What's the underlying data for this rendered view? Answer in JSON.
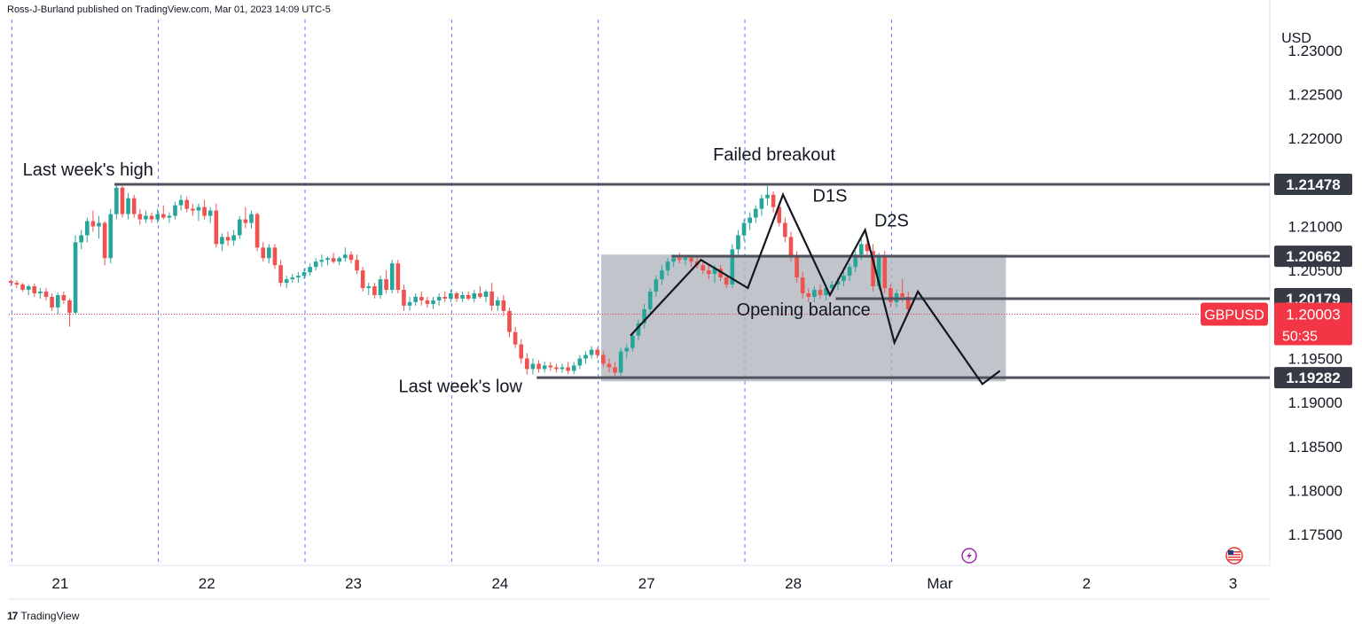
{
  "header": {
    "publisher": "Ross-J-Burland published on TradingView.com, Mar 01, 2023 14:09 UTC-5"
  },
  "footer": {
    "brand": "TradingView"
  },
  "colors": {
    "up": "#26a69a",
    "down": "#ef5350",
    "level": "#50535e",
    "badge": "#363a45",
    "price_badge": "#f23645",
    "grid": "#2962ff",
    "box": "#b2b5be"
  },
  "chart_data": {
    "type": "candlestick",
    "symbol": "GBPUSD",
    "currency": "USD",
    "y_range": [
      1.1715,
      1.2335
    ],
    "y_ticks": [
      {
        "v": 1.23,
        "label": "1.23000"
      },
      {
        "v": 1.225,
        "label": "1.22500"
      },
      {
        "v": 1.22,
        "label": "1.22000"
      },
      {
        "v": 1.21,
        "label": "1.21000"
      },
      {
        "v": 1.205,
        "label": "1.20500"
      },
      {
        "v": 1.195,
        "label": "1.19500"
      },
      {
        "v": 1.19,
        "label": "1.19000"
      },
      {
        "v": 1.185,
        "label": "1.18500"
      },
      {
        "v": 1.18,
        "label": "1.18000"
      },
      {
        "v": 1.175,
        "label": "1.17500"
      }
    ],
    "x_range": [
      0,
      8.6
    ],
    "x_ticks": [
      {
        "x": 0.35,
        "label": "21"
      },
      {
        "x": 1.35,
        "label": "22"
      },
      {
        "x": 2.35,
        "label": "23"
      },
      {
        "x": 3.35,
        "label": "24"
      },
      {
        "x": 4.35,
        "label": "27"
      },
      {
        "x": 5.35,
        "label": "28"
      },
      {
        "x": 6.35,
        "label": "Mar"
      },
      {
        "x": 7.35,
        "label": "2"
      },
      {
        "x": 8.35,
        "label": "3"
      }
    ],
    "session_lines": [
      0.02,
      1.02,
      2.02,
      3.02,
      4.02,
      5.02,
      6.02
    ],
    "candles": [
      [
        0.0,
        1.2038,
        1.204,
        1.2032,
        1.2036
      ],
      [
        0.04,
        1.2036,
        1.2039,
        1.203,
        1.2034
      ],
      [
        0.08,
        1.2034,
        1.2036,
        1.2026,
        1.2028
      ],
      [
        0.12,
        1.2028,
        1.2034,
        1.2022,
        1.2032
      ],
      [
        0.16,
        1.2032,
        1.2035,
        1.202,
        1.2024
      ],
      [
        0.2,
        1.2024,
        1.203,
        1.2018,
        1.2026
      ],
      [
        0.24,
        1.2026,
        1.203,
        1.2016,
        1.202
      ],
      [
        0.28,
        1.202,
        1.2024,
        1.2004,
        1.2008
      ],
      [
        0.32,
        1.2008,
        1.2025,
        1.2,
        1.2022
      ],
      [
        0.36,
        1.2022,
        1.2026,
        1.2012,
        1.2016
      ],
      [
        0.4,
        1.2016,
        1.2018,
        1.1986,
        1.2002
      ],
      [
        0.44,
        1.2002,
        1.209,
        1.2,
        1.2082
      ],
      [
        0.48,
        1.2082,
        1.2096,
        1.2074,
        1.209
      ],
      [
        0.52,
        1.209,
        1.211,
        1.2082,
        1.2106
      ],
      [
        0.56,
        1.2106,
        1.2118,
        1.2094,
        1.21
      ],
      [
        0.6,
        1.21,
        1.2112,
        1.2086,
        1.2104
      ],
      [
        0.64,
        1.2104,
        1.2106,
        1.2056,
        1.2064
      ],
      [
        0.68,
        1.2064,
        1.212,
        1.2058,
        1.2114
      ],
      [
        0.72,
        1.2114,
        1.2148,
        1.2108,
        1.2144
      ],
      [
        0.76,
        1.2144,
        1.2146,
        1.211,
        1.2114
      ],
      [
        0.8,
        1.2114,
        1.2138,
        1.2108,
        1.2132
      ],
      [
        0.84,
        1.2132,
        1.2136,
        1.211,
        1.2114
      ],
      [
        0.88,
        1.2114,
        1.212,
        1.2102,
        1.2108
      ],
      [
        0.92,
        1.2108,
        1.2118,
        1.2104,
        1.2112
      ],
      [
        0.96,
        1.2112,
        1.2116,
        1.2104,
        1.2108
      ],
      [
        1.0,
        1.2108,
        1.212,
        1.2104,
        1.2114
      ],
      [
        1.04,
        1.2114,
        1.2124,
        1.2108,
        1.211
      ],
      [
        1.08,
        1.211,
        1.2116,
        1.2104,
        1.2112
      ],
      [
        1.12,
        1.2112,
        1.2128,
        1.2108,
        1.2124
      ],
      [
        1.16,
        1.2124,
        1.2136,
        1.2118,
        1.213
      ],
      [
        1.2,
        1.213,
        1.2134,
        1.2116,
        1.212
      ],
      [
        1.24,
        1.212,
        1.2126,
        1.2112,
        1.2118
      ],
      [
        1.28,
        1.2118,
        1.2126,
        1.2106,
        1.2122
      ],
      [
        1.32,
        1.2122,
        1.213,
        1.2108,
        1.2112
      ],
      [
        1.36,
        1.2112,
        1.2122,
        1.2104,
        1.2118
      ],
      [
        1.4,
        1.2118,
        1.2126,
        1.2076,
        1.208
      ],
      [
        1.44,
        1.208,
        1.2092,
        1.2072,
        1.2088
      ],
      [
        1.48,
        1.2088,
        1.2094,
        1.2078,
        1.2084
      ],
      [
        1.52,
        1.2084,
        1.2096,
        1.2078,
        1.209
      ],
      [
        1.56,
        1.209,
        1.2112,
        1.2086,
        1.2108
      ],
      [
        1.6,
        1.2108,
        1.2122,
        1.2098,
        1.2104
      ],
      [
        1.64,
        1.2104,
        1.2118,
        1.2098,
        1.2114
      ],
      [
        1.68,
        1.2114,
        1.2116,
        1.2072,
        1.2076
      ],
      [
        1.72,
        1.2076,
        1.2082,
        1.206,
        1.2064
      ],
      [
        1.76,
        1.2064,
        1.208,
        1.2058,
        1.2076
      ],
      [
        1.8,
        1.2076,
        1.208,
        1.2052,
        1.2056
      ],
      [
        1.84,
        1.2056,
        1.2062,
        1.2032,
        1.2036
      ],
      [
        1.88,
        1.2036,
        1.2044,
        1.203,
        1.204
      ],
      [
        1.92,
        1.204,
        1.2046,
        1.2036,
        1.2042
      ],
      [
        1.96,
        1.2042,
        1.2048,
        1.2036,
        1.2044
      ],
      [
        2.0,
        1.2044,
        1.2052,
        1.204,
        1.2048
      ],
      [
        2.04,
        1.2048,
        1.2058,
        1.2044,
        1.2054
      ],
      [
        2.08,
        1.2054,
        1.2064,
        1.205,
        1.206
      ],
      [
        2.12,
        1.206,
        1.2068,
        1.2054,
        1.2062
      ],
      [
        2.16,
        1.2062,
        1.2066,
        1.2056,
        1.2064
      ],
      [
        2.2,
        1.2064,
        1.207,
        1.2058,
        1.206
      ],
      [
        2.24,
        1.206,
        1.2066,
        1.2056,
        1.2064
      ],
      [
        2.28,
        1.2064,
        1.2076,
        1.206,
        1.2068
      ],
      [
        2.32,
        1.2068,
        1.2072,
        1.2058,
        1.2062
      ],
      [
        2.36,
        1.2062,
        1.2068,
        1.2046,
        1.205
      ],
      [
        2.4,
        1.205,
        1.2054,
        1.2026,
        1.203
      ],
      [
        2.44,
        1.203,
        1.2036,
        1.2022,
        1.2032
      ],
      [
        2.48,
        1.2032,
        1.2036,
        1.2018,
        1.2022
      ],
      [
        2.52,
        1.2022,
        1.2044,
        1.2018,
        1.204
      ],
      [
        2.56,
        1.204,
        1.205,
        1.2024,
        1.2028
      ],
      [
        2.6,
        1.2028,
        1.2062,
        1.2024,
        1.2058
      ],
      [
        2.64,
        1.2058,
        1.2062,
        1.2024,
        1.2028
      ],
      [
        2.68,
        1.2028,
        1.2034,
        1.2004,
        1.201
      ],
      [
        2.72,
        1.201,
        1.202,
        1.2004,
        1.2014
      ],
      [
        2.76,
        1.2014,
        1.2024,
        1.201,
        1.202
      ],
      [
        2.8,
        1.202,
        1.2026,
        1.201,
        1.2016
      ],
      [
        2.84,
        1.2016,
        1.202,
        1.2008,
        1.2012
      ],
      [
        2.88,
        1.2012,
        1.202,
        1.2006,
        1.2016
      ],
      [
        2.92,
        1.2016,
        1.2024,
        1.201,
        1.202
      ],
      [
        2.96,
        1.202,
        1.2026,
        1.2014,
        1.2018
      ],
      [
        3.0,
        1.2018,
        1.2028,
        1.2014,
        1.2024
      ],
      [
        3.04,
        1.2024,
        1.2026,
        1.2014,
        1.2018
      ],
      [
        3.08,
        1.2018,
        1.2026,
        1.2014,
        1.2022
      ],
      [
        3.12,
        1.2022,
        1.2026,
        1.2016,
        1.2018
      ],
      [
        3.16,
        1.2018,
        1.2028,
        1.2014,
        1.2024
      ],
      [
        3.2,
        1.2024,
        1.2032,
        1.2018,
        1.202
      ],
      [
        3.24,
        1.202,
        1.2028,
        1.2014,
        1.2026
      ],
      [
        3.28,
        1.2026,
        1.2036,
        1.2004,
        1.201
      ],
      [
        3.32,
        1.201,
        1.202,
        1.2004,
        1.2016
      ],
      [
        3.36,
        1.2016,
        1.2022,
        1.1998,
        1.2004
      ],
      [
        3.4,
        1.2004,
        1.2008,
        1.1974,
        1.198
      ],
      [
        3.44,
        1.198,
        1.1986,
        1.1962,
        1.1966
      ],
      [
        3.48,
        1.1966,
        1.1972,
        1.1944,
        1.195
      ],
      [
        3.52,
        1.195,
        1.1956,
        1.1932,
        1.1938
      ],
      [
        3.56,
        1.1938,
        1.195,
        1.1932,
        1.1944
      ],
      [
        3.6,
        1.1944,
        1.1948,
        1.1934,
        1.1938
      ],
      [
        3.64,
        1.1938,
        1.1946,
        1.1934,
        1.1942
      ],
      [
        3.68,
        1.1942,
        1.1946,
        1.1936,
        1.194
      ],
      [
        3.72,
        1.194,
        1.1944,
        1.1934,
        1.1938
      ],
      [
        3.76,
        1.1938,
        1.1944,
        1.1934,
        1.194
      ],
      [
        3.8,
        1.194,
        1.1946,
        1.1932,
        1.1936
      ],
      [
        3.84,
        1.1936,
        1.1946,
        1.1932,
        1.1942
      ],
      [
        3.88,
        1.1942,
        1.1954,
        1.1938,
        1.195
      ],
      [
        3.92,
        1.195,
        1.1958,
        1.1944,
        1.1954
      ],
      [
        3.96,
        1.1954,
        1.1964,
        1.195,
        1.196
      ],
      [
        4.0,
        1.196,
        1.1962,
        1.195,
        1.1954
      ],
      [
        4.04,
        1.1954,
        1.1958,
        1.194,
        1.1944
      ],
      [
        4.08,
        1.1944,
        1.195,
        1.1934,
        1.194
      ],
      [
        4.12,
        1.194,
        1.1946,
        1.1928,
        1.1934
      ],
      [
        4.16,
        1.1934,
        1.1962,
        1.193,
        1.1958
      ],
      [
        4.2,
        1.1958,
        1.1966,
        1.195,
        1.1962
      ],
      [
        4.24,
        1.1962,
        1.198,
        1.1958,
        1.1976
      ],
      [
        4.28,
        1.1976,
        1.1994,
        1.197,
        1.199
      ],
      [
        4.32,
        1.199,
        1.2012,
        1.1984,
        1.2006
      ],
      [
        4.36,
        1.2006,
        1.203,
        1.2,
        1.2026
      ],
      [
        4.4,
        1.2026,
        1.2044,
        1.202,
        1.204
      ],
      [
        4.44,
        1.204,
        1.2056,
        1.2034,
        1.205
      ],
      [
        4.48,
        1.205,
        1.2064,
        1.2044,
        1.206
      ],
      [
        4.52,
        1.206,
        1.2068,
        1.2054,
        1.2064
      ],
      [
        4.56,
        1.2064,
        1.207,
        1.2058,
        1.2062
      ],
      [
        4.6,
        1.2062,
        1.2068,
        1.2056,
        1.2064
      ],
      [
        4.64,
        1.2064,
        1.2068,
        1.2054,
        1.206
      ],
      [
        4.68,
        1.206,
        1.2066,
        1.2052,
        1.2056
      ],
      [
        4.72,
        1.2056,
        1.2062,
        1.2046,
        1.205
      ],
      [
        4.76,
        1.205,
        1.2056,
        1.204,
        1.2046
      ],
      [
        4.8,
        1.2046,
        1.2056,
        1.2036,
        1.2052
      ],
      [
        4.84,
        1.2052,
        1.2056,
        1.2038,
        1.2042
      ],
      [
        4.88,
        1.2042,
        1.2046,
        1.203,
        1.2034
      ],
      [
        4.92,
        1.2034,
        1.208,
        1.203,
        1.2074
      ],
      [
        4.96,
        1.2074,
        1.2096,
        1.2068,
        1.209
      ],
      [
        5.0,
        1.209,
        1.2108,
        1.2084,
        1.2104
      ],
      [
        5.04,
        1.2104,
        1.2116,
        1.2096,
        1.211
      ],
      [
        5.08,
        1.211,
        1.2124,
        1.2104,
        1.212
      ],
      [
        5.12,
        1.212,
        1.2136,
        1.2112,
        1.2132
      ],
      [
        5.16,
        1.2132,
        1.2146,
        1.2124,
        1.2136
      ],
      [
        5.2,
        1.2136,
        1.214,
        1.2116,
        1.2122
      ],
      [
        5.24,
        1.2122,
        1.2126,
        1.21,
        1.2104
      ],
      [
        5.28,
        1.2104,
        1.211,
        1.2082,
        1.2088
      ],
      [
        5.32,
        1.2088,
        1.2094,
        1.206,
        1.2066
      ],
      [
        5.36,
        1.2066,
        1.2072,
        1.2036,
        1.2042
      ],
      [
        5.4,
        1.2042,
        1.2048,
        1.2018,
        1.2024
      ],
      [
        5.44,
        1.2024,
        1.203,
        1.2014,
        1.202
      ],
      [
        5.48,
        1.202,
        1.2032,
        1.2014,
        1.2028
      ],
      [
        5.52,
        1.2028,
        1.2034,
        1.2018,
        1.2022
      ],
      [
        5.56,
        1.2022,
        1.2034,
        1.2016,
        1.203
      ],
      [
        5.6,
        1.203,
        1.2038,
        1.2024,
        1.2034
      ],
      [
        5.64,
        1.2034,
        1.2042,
        1.2028,
        1.2038
      ],
      [
        5.68,
        1.2038,
        1.2048,
        1.2032,
        1.2044
      ],
      [
        5.72,
        1.2044,
        1.2058,
        1.2038,
        1.2054
      ],
      [
        5.76,
        1.2054,
        1.2072,
        1.2048,
        1.2068
      ],
      [
        5.8,
        1.2068,
        1.2086,
        1.2062,
        1.208
      ],
      [
        5.84,
        1.208,
        1.209,
        1.2068,
        1.2072
      ],
      [
        5.88,
        1.2072,
        1.208,
        1.2026,
        1.2032
      ],
      [
        5.92,
        1.2032,
        1.207,
        1.2028,
        1.2066
      ],
      [
        5.96,
        1.2066,
        1.2072,
        1.2024,
        1.203
      ],
      [
        6.0,
        1.203,
        1.2034,
        1.2008,
        1.2014
      ],
      [
        6.04,
        1.2014,
        1.2028,
        1.2008,
        1.2024
      ],
      [
        6.08,
        1.2024,
        1.204,
        1.2014,
        1.202
      ],
      [
        6.12,
        1.202,
        1.2026,
        1.2002,
        1.2006
      ]
    ],
    "levels": [
      {
        "y": 1.21478,
        "label": "1.21478",
        "x_start": 0.72
      },
      {
        "y": 1.20662,
        "label": "1.20662",
        "x_start": 4.52
      },
      {
        "y": 1.20179,
        "label": "1.20179",
        "x_start": 5.64
      },
      {
        "y": 1.19282,
        "label": "1.19282",
        "x_start": 3.6
      }
    ],
    "current": {
      "symbol": "GBPUSD",
      "price": 1.20003,
      "price_label": "1.20003",
      "countdown": "50:35"
    },
    "box": {
      "x0": 4.04,
      "x1": 6.8,
      "y0": 1.2068,
      "y1": 1.1924,
      "label": "Opening balance"
    },
    "path": [
      [
        4.24,
        1.1976
      ],
      [
        4.72,
        1.2062
      ],
      [
        5.04,
        1.203
      ],
      [
        5.28,
        1.2136
      ],
      [
        5.6,
        1.2022
      ],
      [
        5.84,
        1.2096
      ],
      [
        6.04,
        1.1968
      ],
      [
        6.2,
        1.2026
      ],
      [
        6.64,
        1.1921
      ],
      [
        6.76,
        1.1936
      ]
    ],
    "annotations": [
      {
        "text": "Last week's high",
        "x": 0.54,
        "y": 1.2158
      },
      {
        "text": "Last week's low",
        "x": 3.08,
        "y": 1.1912
      },
      {
        "text": "Failed breakout",
        "x": 5.22,
        "y": 1.2175
      },
      {
        "text": "D1S",
        "x": 5.6,
        "y": 1.2128
      },
      {
        "text": "D2S",
        "x": 6.02,
        "y": 1.21
      }
    ],
    "event_icons": [
      {
        "x": 6.55,
        "type": "lightning-icon"
      },
      {
        "x": 8.6,
        "type": "us-flag-icon"
      }
    ]
  }
}
